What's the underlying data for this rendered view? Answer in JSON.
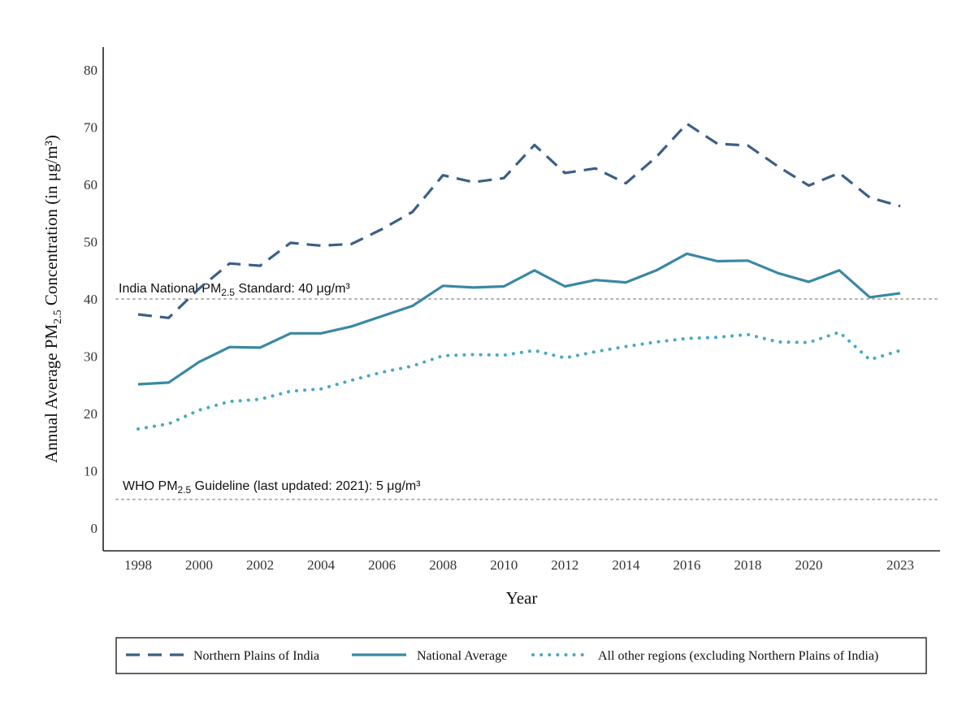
{
  "chart_data": {
    "type": "line",
    "title": "",
    "xlabel": "Year",
    "ylabel": {
      "prefix": "Annual Average  PM",
      "sub": "2.5",
      "suffix": "  Concentration (in μg/m³)"
    },
    "ylim": [
      -4,
      84
    ],
    "xlim": [
      1997.3,
      2024.2
    ],
    "yticks": [
      0,
      10,
      20,
      30,
      40,
      50,
      60,
      70,
      80
    ],
    "xticks": [
      1998,
      2000,
      2002,
      2004,
      2006,
      2008,
      2010,
      2012,
      2014,
      2016,
      2018,
      2020,
      2023
    ],
    "x": [
      1998,
      1999,
      2000,
      2001,
      2002,
      2003,
      2004,
      2005,
      2006,
      2007,
      2008,
      2009,
      2010,
      2011,
      2012,
      2013,
      2014,
      2015,
      2016,
      2017,
      2018,
      2019,
      2020,
      2021,
      2022,
      2023
    ],
    "series": [
      {
        "name": "Northern Plains of India",
        "style": "dashed",
        "color": "#3b5f86",
        "values": [
          37.3,
          36.7,
          41.8,
          46.2,
          45.8,
          49.8,
          49.3,
          49.6,
          52.2,
          55.2,
          61.6,
          60.4,
          61.1,
          66.9,
          62.0,
          62.8,
          60.2,
          64.8,
          70.6,
          67.1,
          66.8,
          63.1,
          59.8,
          62.0,
          57.7,
          56.2
        ]
      },
      {
        "name": "National Average",
        "style": "solid",
        "color": "#3a88a3",
        "values": [
          25.1,
          25.4,
          29.0,
          31.6,
          31.5,
          34.0,
          34.0,
          35.2,
          37.0,
          38.8,
          42.3,
          42.0,
          42.2,
          45.0,
          42.2,
          43.3,
          42.9,
          45.0,
          47.9,
          46.6,
          46.7,
          44.5,
          43.0,
          45.0,
          40.3,
          41.0
        ]
      },
      {
        "name": "All other regions (excluding Northern Plains of India)",
        "style": "dotted",
        "color": "#4aa9c2",
        "values": [
          17.3,
          18.2,
          20.6,
          22.1,
          22.5,
          23.9,
          24.3,
          25.8,
          27.2,
          28.3,
          30.1,
          30.3,
          30.2,
          31.0,
          29.7,
          30.8,
          31.7,
          32.5,
          33.1,
          33.3,
          33.8,
          32.5,
          32.4,
          34.2,
          29.4,
          31.0
        ]
      }
    ],
    "reference_lines": [
      {
        "value": 40,
        "label_prefix": "India National PM",
        "label_sub": "2.5",
        "label_suffix": " Standard: 40 μg/m³"
      },
      {
        "value": 5,
        "label_prefix": "WHO PM",
        "label_sub": "2.5",
        "label_suffix": " Guideline (last updated: 2021): 5 μg/m³"
      }
    ],
    "grid": false,
    "legend": "bottom"
  }
}
